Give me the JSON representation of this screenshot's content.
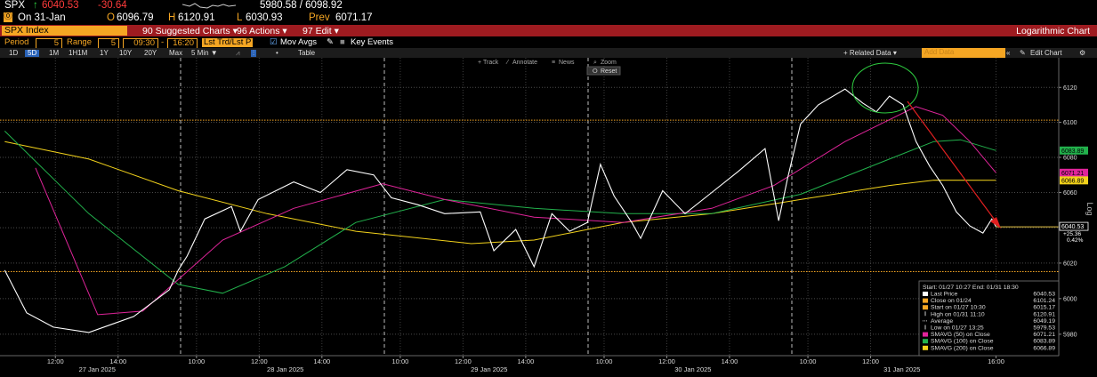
{
  "header": {
    "ticker": "SPX",
    "arrow": "↑",
    "last": 6040.53,
    "change": -30.64,
    "range": "5980.58 / 6098.92",
    "date": "On 31-Jan",
    "open_label": "O",
    "open": 6096.79,
    "high_label": "H",
    "high": 6120.91,
    "low_label": "L",
    "low": 6030.93,
    "prev_label": "Prev",
    "prev": 6071.17
  },
  "menu": {
    "security": "SPX Index",
    "items": [
      "90 Suggested Charts ▾",
      "96 Actions ▾",
      "97 Edit ▾"
    ],
    "title": "Logarithmic Chart"
  },
  "settings": {
    "period_label": "Period",
    "period": 5,
    "range_label": "Range",
    "range": 5,
    "start": "09:30",
    "end": "16:20",
    "price_type": "Lst Trd/Lst P",
    "mov_avgs": "Mov Avgs",
    "key_events": "Key Events"
  },
  "toolbar": {
    "ranges": [
      "1D",
      "5D",
      "1M",
      "1H1M",
      "1Y",
      "10Y",
      "20Y",
      "Max"
    ],
    "interval": "5 Min ▼",
    "table": "Table",
    "related": "+ Related Data ▾",
    "add_data": "Add Data",
    "edit": "Edit Chart"
  },
  "chart_tools": {
    "items": [
      "Track",
      "Annotate",
      "News",
      "Zoom"
    ],
    "reset": "Reset"
  },
  "chart_data": {
    "type": "line",
    "log_scale": true,
    "grid": true,
    "axis_scale_label": "Log",
    "xlim": [
      44,
      2070
    ],
    "ylim": [
      5968,
      6137
    ],
    "yticks": [
      5980,
      6000,
      6020,
      6040,
      6060,
      6080,
      6100,
      6120
    ],
    "xticks": [
      {
        "value": 150,
        "label": "12:00"
      },
      {
        "value": 270,
        "label": "14:00"
      },
      {
        "value": 420,
        "label": "10:00"
      },
      {
        "value": 540,
        "label": "12:00"
      },
      {
        "value": 660,
        "label": "14:00"
      },
      {
        "value": 810,
        "label": "10:00"
      },
      {
        "value": 930,
        "label": "12:00"
      },
      {
        "value": 1050,
        "label": "14:00"
      },
      {
        "value": 1200,
        "label": "10:00"
      },
      {
        "value": 1320,
        "label": "12:00"
      },
      {
        "value": 1440,
        "label": "14:00"
      },
      {
        "value": 1590,
        "label": "10:00"
      },
      {
        "value": 1710,
        "label": "12:00"
      },
      {
        "value": 1950,
        "label": "16:00"
      }
    ],
    "date_labels": [
      {
        "value": 230,
        "label": "27 Jan 2025"
      },
      {
        "value": 590,
        "label": "28 Jan 2025"
      },
      {
        "value": 980,
        "label": "29 Jan 2025"
      },
      {
        "value": 1370,
        "label": "30 Jan 2025"
      },
      {
        "value": 1770,
        "label": "31 Jan 2025"
      }
    ],
    "series": [
      {
        "name": "Last Price",
        "color": "#ffffff",
        "x": [
          53,
          95,
          146,
          214,
          300,
          368,
          385,
          402,
          436,
          487,
          504,
          538,
          606,
          657,
          708,
          759,
          793,
          844,
          895,
          963,
          989,
          1031,
          1066,
          1100,
          1134,
          1168,
          1193,
          1219,
          1253,
          1270,
          1312,
          1355,
          1406,
          1457,
          1508,
          1534,
          1551,
          1576,
          1610,
          1661,
          1695,
          1721,
          1746,
          1772,
          1797,
          1823,
          1848,
          1874,
          1900,
          1925,
          1942,
          1950
        ],
        "values": [
          6016,
          5992,
          5984,
          5981,
          5990,
          6005,
          6016,
          6024,
          6045,
          6052,
          6038,
          6056,
          6066,
          6060,
          6073,
          6070,
          6057,
          6053,
          6048,
          6049,
          6027,
          6039,
          6018,
          6048,
          6038,
          6043,
          6076,
          6058,
          6043,
          6034,
          6061,
          6048,
          6060,
          6072,
          6085,
          6044,
          6068,
          6099,
          6110,
          6119,
          6111,
          6106,
          6115,
          6110,
          6089,
          6075,
          6064,
          6049,
          6041,
          6037,
          6045,
          6040.53
        ]
      },
      {
        "name": "SMAVG (50)  on Close",
        "color": "#e0249a",
        "x": [
          112,
          231,
          317,
          470,
          606,
          776,
          895,
          1066,
          1236,
          1406,
          1525,
          1661,
          1763,
          1797,
          1848,
          1900,
          1950
        ],
        "values": [
          6074,
          5991,
          5993,
          6033,
          6051,
          6065,
          6056,
          6046,
          6043,
          6051,
          6064,
          6089,
          6104,
          6109,
          6104,
          6089,
          6071.21
        ]
      },
      {
        "name": "SMAVG (100)  on Close",
        "color": "#22b14c",
        "x": [
          53,
          214,
          385,
          470,
          589,
          725,
          895,
          1066,
          1236,
          1406,
          1576,
          1746,
          1831,
          1882,
          1950
        ],
        "values": [
          6095,
          6048,
          6008,
          6003,
          6018,
          6043,
          6056,
          6051,
          6048,
          6048,
          6059,
          6079,
          6089,
          6090,
          6083.89
        ]
      },
      {
        "name": "SMAVG (200)  on Close",
        "color": "#f2d21b",
        "x": [
          53,
          214,
          385,
          555,
          725,
          946,
          1066,
          1236,
          1406,
          1576,
          1746,
          1831,
          1950
        ],
        "values": [
          6089,
          6079,
          6061,
          6048,
          6038,
          6031,
          6033,
          6043,
          6048,
          6056,
          6064,
          6067,
          6066.89
        ]
      }
    ],
    "reference_lines": [
      {
        "name": "Close on 01/24",
        "value": 6101.24,
        "color": "#f5a623"
      },
      {
        "name": "Start on 01/27 10:30",
        "value": 6015.17,
        "color": "#f5a623"
      }
    ],
    "stats": [
      {
        "name": "High on 01/31 11:10",
        "value": 6120.91
      },
      {
        "name": "Average",
        "value": 6049.19
      },
      {
        "name": "Low on 01/27 13:25",
        "value": 5979.53
      }
    ],
    "legend_title": "Start: 01/27 10:27  End: 01/31 18:30",
    "last_tag": {
      "change": "+25.36",
      "pct": "0.42%"
    }
  }
}
